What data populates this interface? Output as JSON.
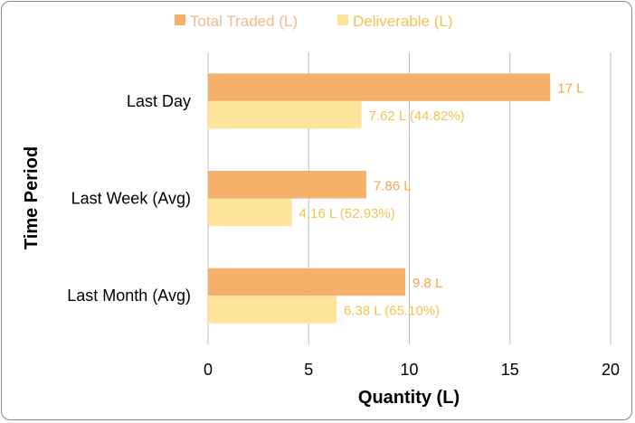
{
  "chart_data": {
    "type": "bar",
    "orientation": "horizontal",
    "title": "",
    "xlabel": "Quantity (L)",
    "ylabel": "Time Period",
    "xlim": [
      0,
      20
    ],
    "xticks": [
      "0",
      "5",
      "10",
      "15",
      "20"
    ],
    "grid": true,
    "legend_position": "top",
    "categories": [
      "Last Day",
      "Last Week (Avg)",
      "Last Month (Avg)"
    ],
    "series": [
      {
        "name": "Total Traded (L)",
        "color": "#F5B16B",
        "label_color": "#F4A64A",
        "values": [
          17,
          7.86,
          9.8
        ],
        "labels": [
          "17 L",
          "7.86 L",
          "9.8 L"
        ]
      },
      {
        "name": "Deliverable (L)",
        "color": "#FEE49A",
        "label_color": "#F2C34E",
        "values": [
          7.62,
          4.16,
          6.38
        ],
        "labels": [
          "7.62 L (44.82%)",
          "4.16 L (52.93%)",
          "6.38 L (65.10%)"
        ]
      }
    ]
  }
}
